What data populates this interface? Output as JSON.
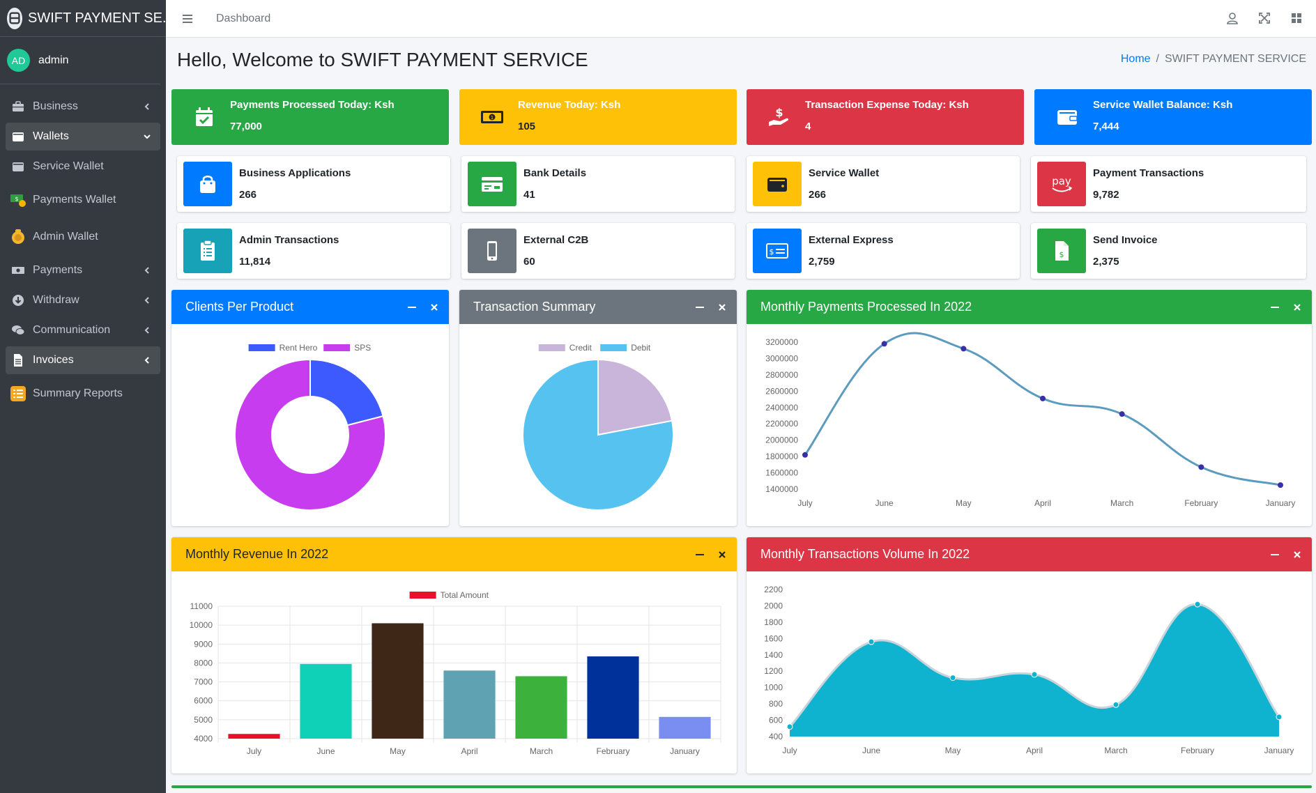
{
  "brand": {
    "title": "SWIFT PAYMENT SE..."
  },
  "user": {
    "initials": "AD",
    "name": "admin"
  },
  "sidebar": {
    "items": [
      {
        "label": "Business",
        "icon": "briefcase-icon"
      },
      {
        "label": "Wallets",
        "icon": "wallet-icon"
      },
      {
        "label": "Service Wallet",
        "icon": "wallet-icon"
      },
      {
        "label": "Payments Wallet",
        "icon": "money-bag-icon"
      },
      {
        "label": "Admin Wallet",
        "icon": "gold-wallet-icon"
      },
      {
        "label": "Payments",
        "icon": "money-icon"
      },
      {
        "label": "Withdraw",
        "icon": "download-icon"
      },
      {
        "label": "Communication",
        "icon": "chat-icon"
      },
      {
        "label": "Invoices",
        "icon": "invoice-icon"
      },
      {
        "label": "Summary Reports",
        "icon": "list-report-icon"
      }
    ]
  },
  "topbar": {
    "link": "Dashboard"
  },
  "header": {
    "title": "Hello, Welcome to SWIFT PAYMENT SERVICE"
  },
  "breadcrumb": {
    "home": "Home",
    "current": "SWIFT PAYMENT SERVICE"
  },
  "stat_boxes": [
    {
      "label": "Payments Processed Today: Ksh",
      "value": "77,000",
      "color": "#28a745"
    },
    {
      "label": "Revenue Today: Ksh",
      "value": "105",
      "color": "#ffc107"
    },
    {
      "label": "Transaction Expense Today: Ksh",
      "value": "4",
      "color": "#dc3545"
    },
    {
      "label": "Service Wallet Balance: Ksh",
      "value": "7,444",
      "color": "#007bff"
    }
  ],
  "info_boxes": [
    {
      "label": "Business Applications",
      "value": "266",
      "color": "#007bff"
    },
    {
      "label": "Bank Details",
      "value": "41",
      "color": "#28a745"
    },
    {
      "label": "Service Wallet",
      "value": "266",
      "color": "#ffc107"
    },
    {
      "label": "Payment Transactions",
      "value": "9,782",
      "color": "#dc3545",
      "icon_text": "pay"
    },
    {
      "label": "Admin Transactions",
      "value": "11,814",
      "color": "#17a2b8"
    },
    {
      "label": "External C2B",
      "value": "60",
      "color": "#6c757d"
    },
    {
      "label": "External Express",
      "value": "2,759",
      "color": "#007bff"
    },
    {
      "label": "Send Invoice",
      "value": "2,375",
      "color": "#28a745"
    }
  ],
  "cards": {
    "clients": "Clients Per Product",
    "transactions": "Transaction Summary",
    "monthly_payments": "Monthly Payments Processed In 2022",
    "monthly_revenue": "Monthly Revenue In 2022",
    "monthly_volume": "Monthly Transactions Volume In 2022"
  },
  "chart_data": [
    {
      "type": "pie",
      "variant": "doughnut",
      "labels": [
        "Rent Hero",
        "SPS"
      ],
      "values": [
        21,
        79
      ],
      "colors": [
        "#3d5afe",
        "#c83cf0"
      ]
    },
    {
      "type": "pie",
      "labels": [
        "Credit",
        "Debit"
      ],
      "values": [
        22,
        78
      ],
      "colors": [
        "#c9b5d9",
        "#55c2f0"
      ]
    },
    {
      "type": "line",
      "categories": [
        "July",
        "June",
        "May",
        "April",
        "March",
        "February",
        "January"
      ],
      "values": [
        1820000,
        3180000,
        3120000,
        2510000,
        2320000,
        1670000,
        1450000
      ],
      "yticks": [
        1400000,
        1600000,
        1800000,
        2000000,
        2200000,
        2400000,
        2600000,
        2800000,
        3000000,
        3200000
      ],
      "ylim": [
        1400000,
        3200000
      ],
      "color": "#5b9bbf",
      "point_color": "#3b2fa8"
    },
    {
      "type": "bar",
      "categories": [
        "July",
        "June",
        "May",
        "April",
        "March",
        "February",
        "January"
      ],
      "series": [
        {
          "name": "Total Amount",
          "values": [
            4250,
            7950,
            10100,
            7600,
            7300,
            8350,
            5150
          ]
        }
      ],
      "bar_colors": [
        "#e8112d",
        "#0fd1b7",
        "#3f2717",
        "#5fa3b3",
        "#3cb23c",
        "#00309a",
        "#7a8df0"
      ],
      "legend_color": "#e8112d",
      "yticks": [
        4000,
        5000,
        6000,
        7000,
        8000,
        9000,
        10000,
        11000
      ],
      "ylim": [
        4000,
        11000
      ]
    },
    {
      "type": "area",
      "categories": [
        "July",
        "June",
        "May",
        "April",
        "March",
        "February",
        "January"
      ],
      "values": [
        520,
        1560,
        1120,
        1160,
        790,
        2020,
        640
      ],
      "yticks": [
        400,
        600,
        800,
        1000,
        1200,
        1400,
        1600,
        1800,
        2000,
        2200
      ],
      "ylim": [
        400,
        2200
      ],
      "fill": "#0fb3cf",
      "line": "#c9d3da"
    }
  ]
}
